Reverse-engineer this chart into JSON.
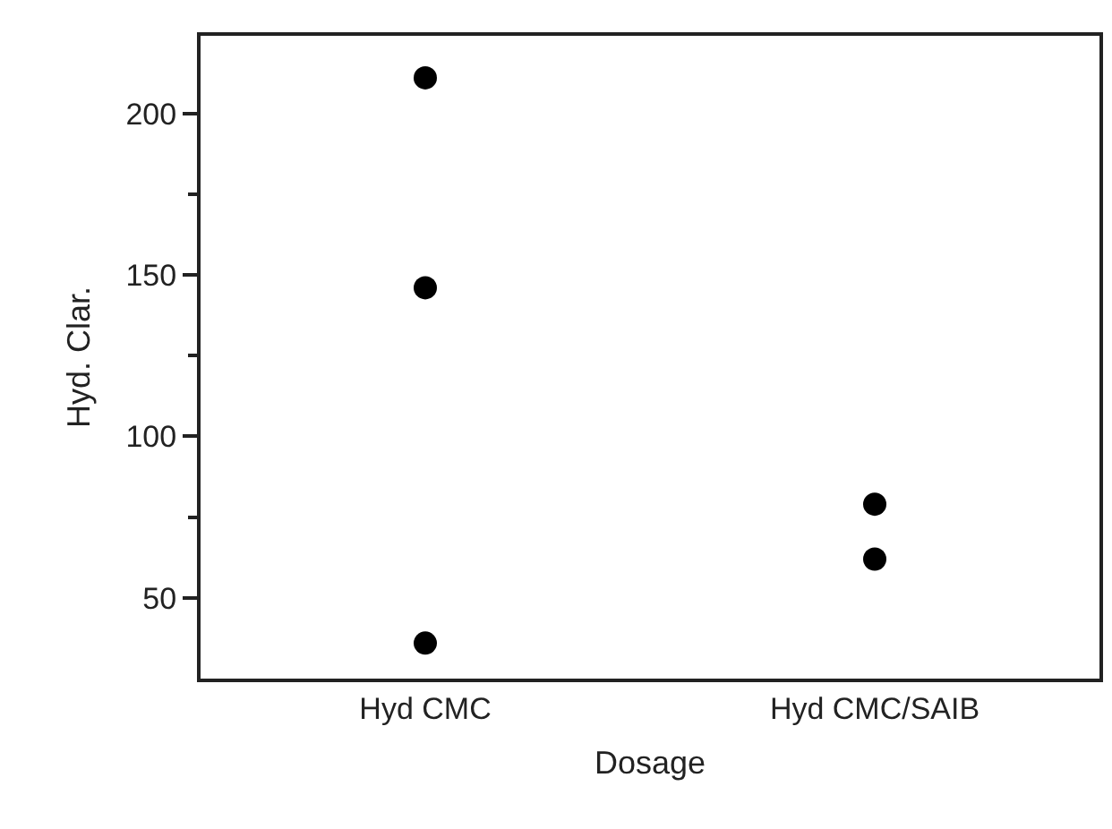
{
  "chart_data": {
    "type": "scatter",
    "xlabel": "Dosage",
    "ylabel": "Hyd. Clar.",
    "categories": [
      "Hyd CMC",
      "Hyd CMC/SAIB"
    ],
    "series": [
      {
        "color": "#000000",
        "x": [
          "Hyd CMC",
          "Hyd CMC",
          "Hyd CMC",
          "Hyd CMC/SAIB",
          "Hyd CMC/SAIB"
        ],
        "values": [
          211,
          146,
          36,
          79,
          62
        ]
      }
    ],
    "ylim": [
      25,
      224
    ],
    "yticks": [
      50,
      {
        "value": 75,
        "label": null
      },
      100,
      {
        "value": 125,
        "label": null
      },
      150,
      {
        "value": 175,
        "label": null
      },
      200
    ],
    "marker": "circle",
    "grid": false
  }
}
